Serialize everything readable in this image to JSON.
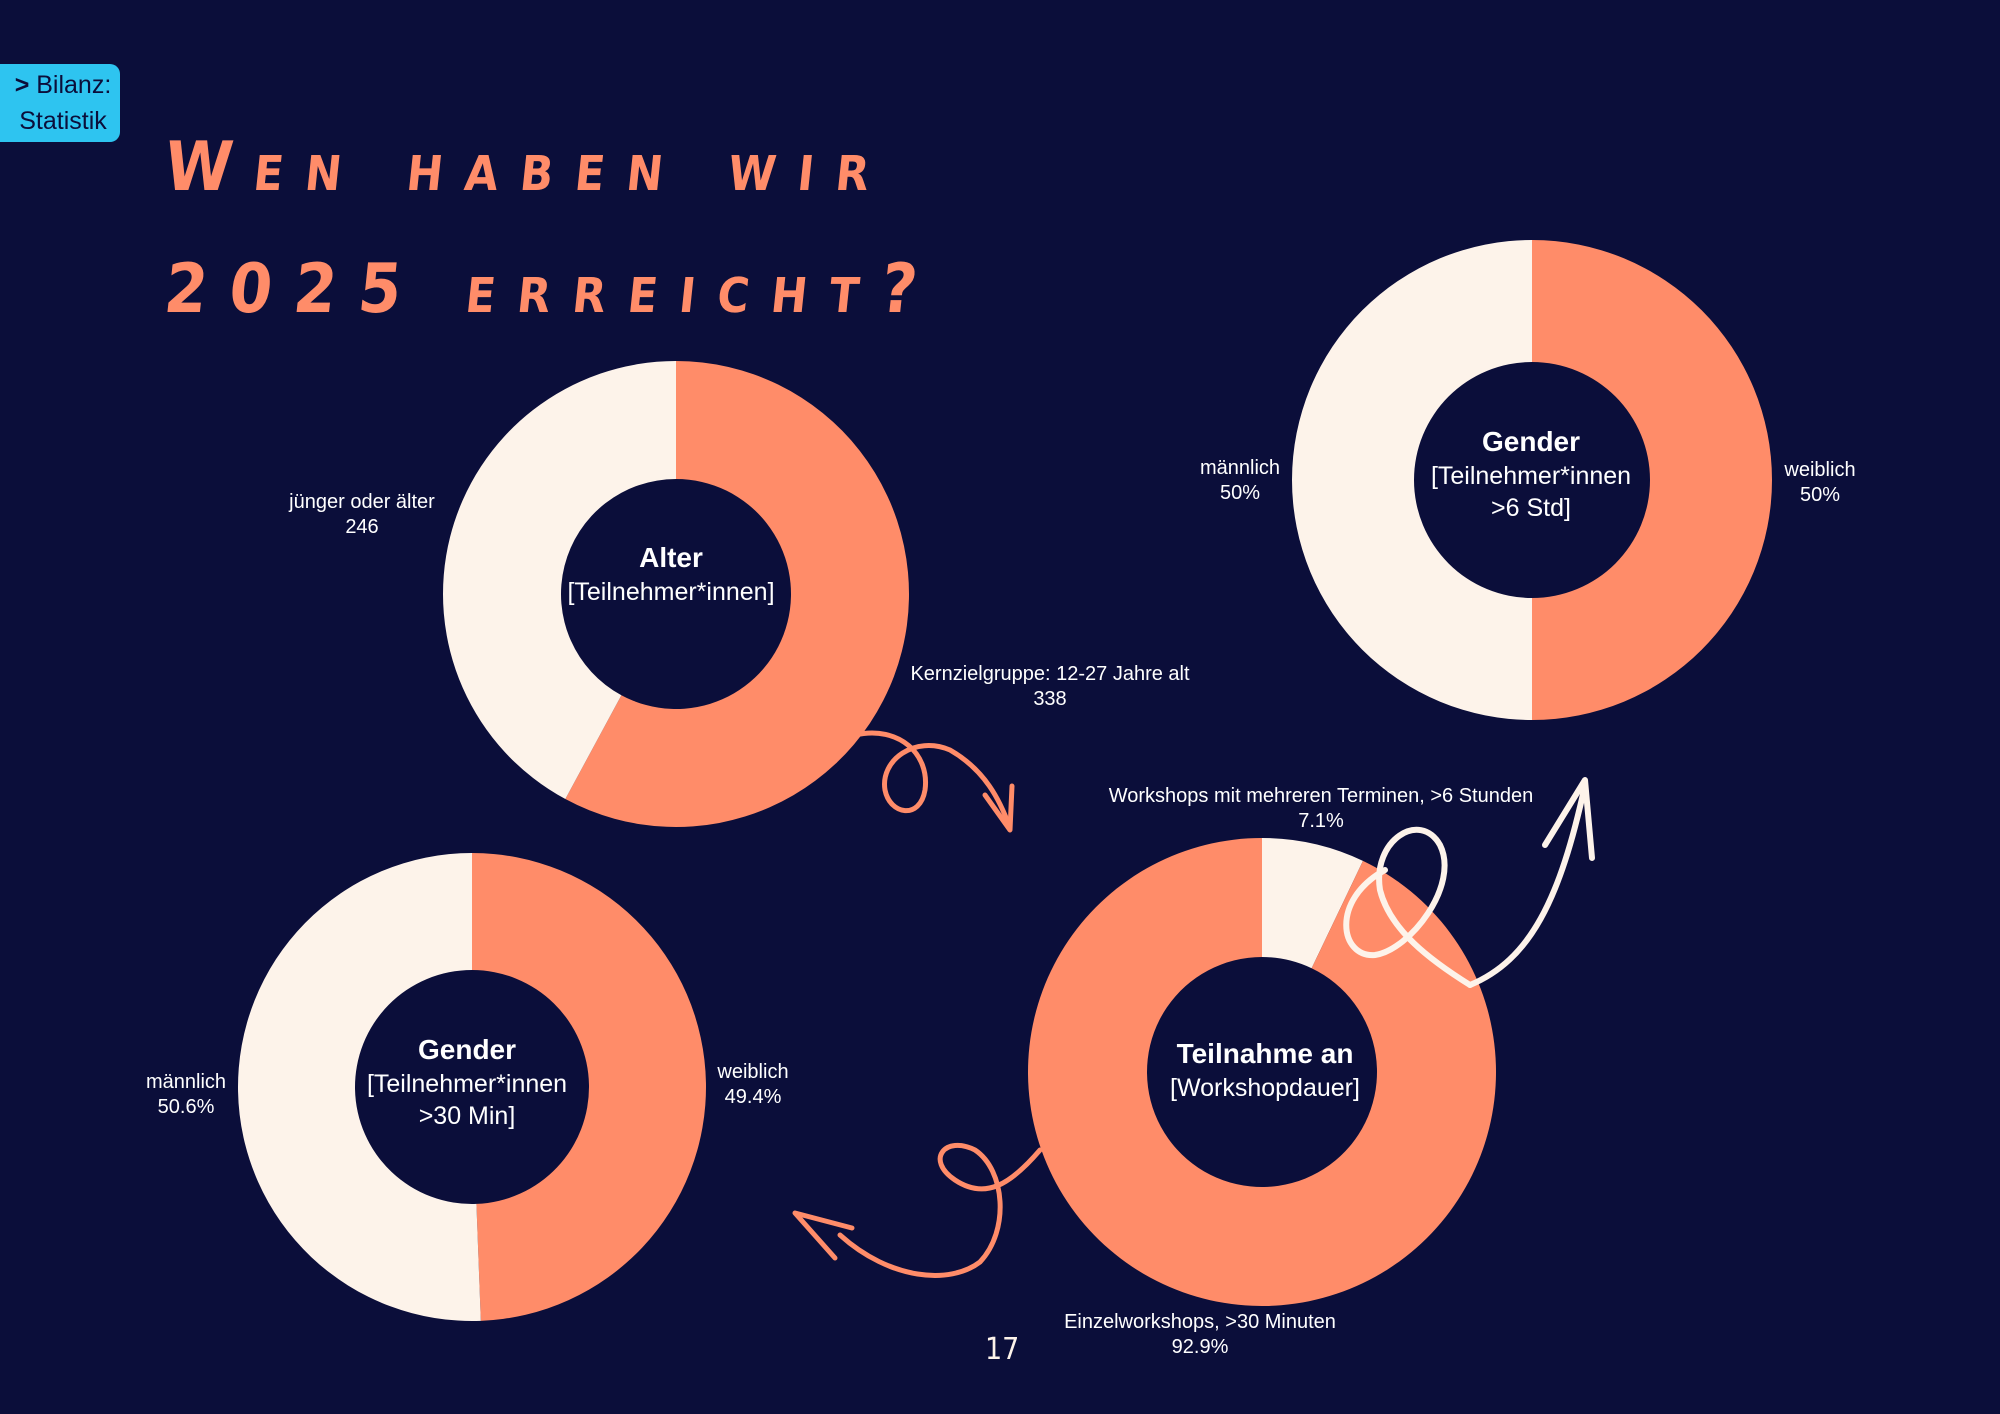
{
  "badge": {
    "chevron": ">",
    "line1": "Bilanz:",
    "line2": "Statistik"
  },
  "title": {
    "line1": "Wen haben wir",
    "line2": "2025 erreicht?"
  },
  "page_number": "17",
  "colors": {
    "background": "#0b0e3a",
    "accent": "#ff8c69",
    "cream": "#fdf3ea",
    "badge": "#2ec4f0"
  },
  "chart_data": [
    {
      "type": "pie",
      "donut": true,
      "title": "Alter",
      "subtitle_lines": [
        "[Teilnehmer*innen]"
      ],
      "slices": [
        {
          "label": "Kernzielgruppe: 12-27 Jahre alt",
          "value": 338,
          "display": "338",
          "color": "#ff8c69"
        },
        {
          "label": "jünger oder älter",
          "value": 246,
          "display": "246",
          "color": "#fdf3ea"
        }
      ]
    },
    {
      "type": "pie",
      "donut": true,
      "title": "Gender",
      "subtitle_lines": [
        "[Teilnehmer*innen",
        ">6 Std]"
      ],
      "slices": [
        {
          "label": "weiblich",
          "value": 50,
          "display": "50%",
          "color": "#ff8c69"
        },
        {
          "label": "männlich",
          "value": 50,
          "display": "50%",
          "color": "#fdf3ea"
        }
      ]
    },
    {
      "type": "pie",
      "donut": true,
      "title": "Gender",
      "subtitle_lines": [
        "[Teilnehmer*innen",
        ">30 Min]"
      ],
      "slices": [
        {
          "label": "weiblich",
          "value": 49.4,
          "display": "49.4%",
          "color": "#ff8c69"
        },
        {
          "label": "männlich",
          "value": 50.6,
          "display": "50.6%",
          "color": "#fdf3ea"
        }
      ]
    },
    {
      "type": "pie",
      "donut": true,
      "title": "Teilnahme an",
      "subtitle_lines": [
        "[Workshopdauer]"
      ],
      "slices": [
        {
          "label": "Workshops mit mehreren Terminen, >6 Stunden",
          "value": 7.1,
          "display": "7.1%",
          "color": "#fdf3ea"
        },
        {
          "label": "Einzelworkshops, >30 Minuten",
          "value": 92.9,
          "display": "92.9%",
          "color": "#ff8c69"
        }
      ]
    }
  ]
}
